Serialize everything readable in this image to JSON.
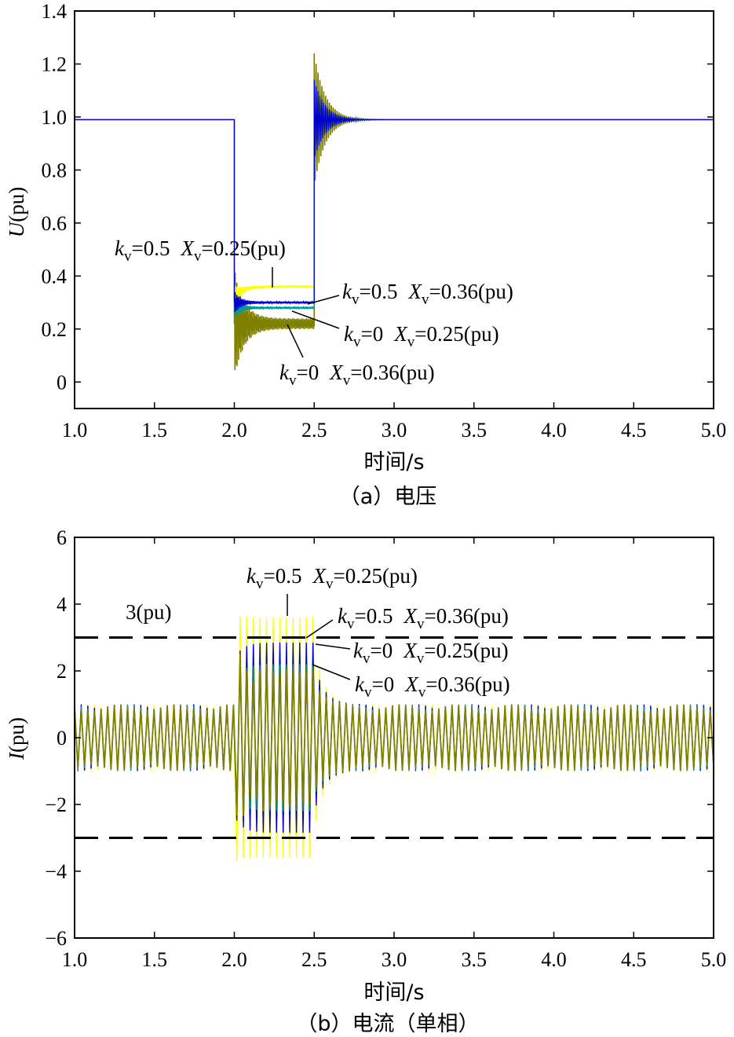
{
  "colors": {
    "kv05_xv025": "#ffff00",
    "kv05_xv036": "#0000cc",
    "kv0_xv025": "#009999",
    "kv0_xv036": "#7f7f00",
    "limit": "#000000"
  },
  "chart_data": [
    {
      "type": "line",
      "caption": "（a）电压",
      "xlabel": "时间/s",
      "ylabel": "U(pu)",
      "xlim": [
        1.0,
        5.0
      ],
      "ylim": [
        -0.1,
        1.4
      ],
      "xticks": [
        "1.0",
        "1.5",
        "2.0",
        "2.5",
        "3.0",
        "3.5",
        "4.0",
        "4.5",
        "5.0"
      ],
      "yticks": [
        "0",
        "0.2",
        "0.4",
        "0.6",
        "0.8",
        "1.0",
        "1.2",
        "1.4"
      ],
      "series": [
        {
          "key": "kv05_xv025",
          "prefault": 0.99,
          "fault_start": 2.0,
          "fault_end": 2.5,
          "fault_level": 0.36,
          "fault_min": 0.32
        },
        {
          "key": "kv05_xv036",
          "prefault": 0.99,
          "fault_start": 2.0,
          "fault_end": 2.5,
          "fault_level": 0.3,
          "fault_min": 0.26
        },
        {
          "key": "kv0_xv025",
          "prefault": 0.99,
          "fault_start": 2.0,
          "fault_end": 2.5,
          "fault_level": 0.28,
          "fault_min": 0.24
        },
        {
          "key": "kv0_xv036",
          "prefault": 0.99,
          "fault_start": 2.0,
          "fault_end": 2.5,
          "fault_level": 0.22,
          "fault_min": 0.03,
          "recovery_peak": 1.24
        }
      ],
      "annotations": [
        {
          "k": "k",
          "k_sub": "v",
          "k_val": "=0.5",
          "x": "X",
          "x_sub": "v",
          "x_val": "=0.25(pu)"
        },
        {
          "k": "k",
          "k_sub": "v",
          "k_val": "=0.5",
          "x": "X",
          "x_sub": "v",
          "x_val": "=0.36(pu)"
        },
        {
          "k": "k",
          "k_sub": "v",
          "k_val": "=0",
          "x": "X",
          "x_sub": "v",
          "x_val": "=0.25(pu)"
        },
        {
          "k": "k",
          "k_sub": "v",
          "k_val": "=0",
          "x": "X",
          "x_sub": "v",
          "x_val": "=0.36(pu)"
        }
      ]
    },
    {
      "type": "line",
      "caption": "（b）电流（单相）",
      "xlabel": "时间/s",
      "ylabel": "I(pu)",
      "xlim": [
        1.0,
        5.0
      ],
      "ylim": [
        -6,
        6
      ],
      "xticks": [
        "1.0",
        "1.5",
        "2.0",
        "2.5",
        "3.0",
        "3.5",
        "4.0",
        "4.5",
        "5.0"
      ],
      "yticks": [
        "−6",
        "−4",
        "−2",
        "0",
        "2",
        "4",
        "6"
      ],
      "limit_lines": [
        3,
        -3
      ],
      "limit_label": "3(pu)",
      "series": [
        {
          "key": "kv05_xv025",
          "prefault_amp": 1.0,
          "fault_start": 2.0,
          "fault_end": 2.5,
          "fault_amp": 3.6,
          "fault_peak": 3.8
        },
        {
          "key": "kv05_xv036",
          "prefault_amp": 1.0,
          "fault_start": 2.0,
          "fault_end": 2.5,
          "fault_amp": 2.85
        },
        {
          "key": "kv0_xv025",
          "prefault_amp": 1.0,
          "fault_start": 2.0,
          "fault_end": 2.5,
          "fault_amp": 2.2
        },
        {
          "key": "kv0_xv036",
          "prefault_amp": 1.0,
          "fault_start": 2.0,
          "fault_end": 2.5,
          "fault_amp": 2.0
        }
      ],
      "annotations": [
        {
          "k": "k",
          "k_sub": "v",
          "k_val": "=0.5",
          "x": "X",
          "x_sub": "v",
          "x_val": "=0.25(pu)"
        },
        {
          "k": "k",
          "k_sub": "v",
          "k_val": "=0.5",
          "x": "X",
          "x_sub": "v",
          "x_val": "=0.36(pu)"
        },
        {
          "k": "k",
          "k_sub": "v",
          "k_val": "=0",
          "x": "X",
          "x_sub": "v",
          "x_val": "=0.25(pu)"
        },
        {
          "k": "k",
          "k_sub": "v",
          "k_val": "=0",
          "x": "X",
          "x_sub": "v",
          "x_val": "=0.36(pu)"
        }
      ]
    }
  ]
}
